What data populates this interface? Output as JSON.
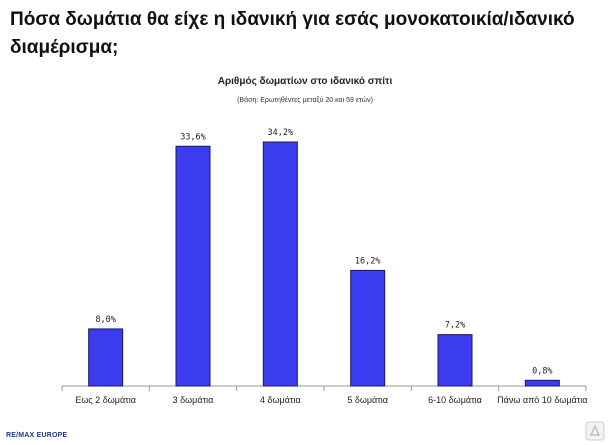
{
  "header": {
    "title": "Πόσα δωμάτια θα είχε η ιδανική για εσάς μονοκατοικία/ιδανικό διαμέρισμα;"
  },
  "chart_data": {
    "type": "bar",
    "title": "Αριθμός δωματίων στο ιδανικό σπίτι",
    "subtitle": "(Βάση: Ερωτηθέντες μεταξύ 20 και 59 ετών)",
    "categories": [
      "Εως 2 δωμάτια",
      "3 δωμάτια",
      "4 δωμάτια",
      "5 δωμάτια",
      "6-10 δωμάτια",
      "Πάνω από 10 δωμάτια"
    ],
    "values": [
      8.0,
      33.6,
      34.2,
      16.2,
      7.2,
      0.8
    ],
    "data_labels": [
      "8,0%",
      "33,6%",
      "34,2%",
      "16,2%",
      "7,2%",
      "0,8%"
    ],
    "unit": "%",
    "ylim": [
      0,
      37
    ],
    "grid": false,
    "legend": "none",
    "bar_color": "#3b3bf0",
    "bar_edge_color": "#1a1a5e"
  },
  "footer": {
    "brand": "RE/MAX EUROPE"
  },
  "icons": {
    "watermark": "logo-watermark-icon"
  }
}
